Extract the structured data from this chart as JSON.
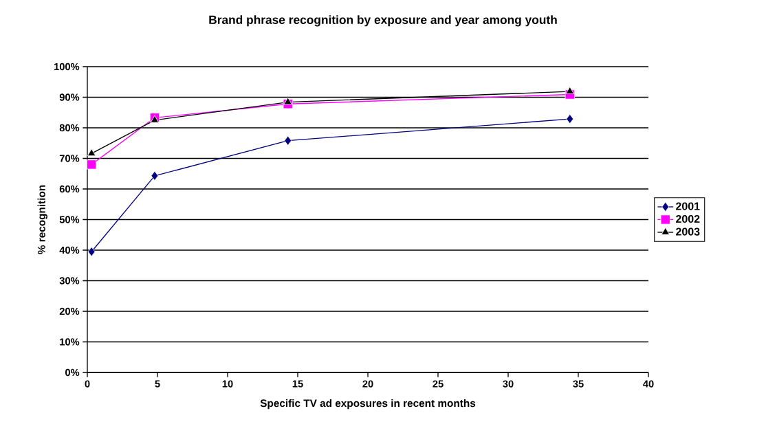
{
  "chart_data": {
    "type": "line",
    "title": "Brand phrase recognition by exposure and year among youth",
    "xlabel": "Specific TV ad exposures in recent months",
    "ylabel": "% recognition",
    "xlim": [
      0,
      40
    ],
    "xticks": [
      0,
      5,
      10,
      15,
      20,
      25,
      30,
      35,
      40
    ],
    "ylim": [
      0,
      100
    ],
    "yticks": [
      {
        "value": 0,
        "label": "0%"
      },
      {
        "value": 10,
        "label": "10%"
      },
      {
        "value": 20,
        "label": "20%"
      },
      {
        "value": 30,
        "label": "30%"
      },
      {
        "value": 40,
        "label": "40%"
      },
      {
        "value": 50,
        "label": "50%"
      },
      {
        "value": 60,
        "label": "60%"
      },
      {
        "value": 70,
        "label": "70%"
      },
      {
        "value": 80,
        "label": "80%"
      },
      {
        "value": 90,
        "label": "90%"
      },
      {
        "value": 100,
        "label": "100%"
      }
    ],
    "grid": "y",
    "legend": "right",
    "line_style": "solid",
    "x": [
      0.3,
      4.8,
      14.3,
      34.4
    ],
    "series": [
      {
        "name": "2001",
        "color": "#000080",
        "marker": "diamond",
        "values": [
          39.5,
          64.3,
          75.8,
          82.9
        ]
      },
      {
        "name": "2002",
        "color": "#ff00ff",
        "marker": "square",
        "values": [
          68.0,
          83.3,
          87.8,
          90.9
        ]
      },
      {
        "name": "2003",
        "color": "#000000",
        "marker": "triangle",
        "values": [
          71.6,
          82.5,
          88.4,
          91.9
        ]
      }
    ]
  }
}
